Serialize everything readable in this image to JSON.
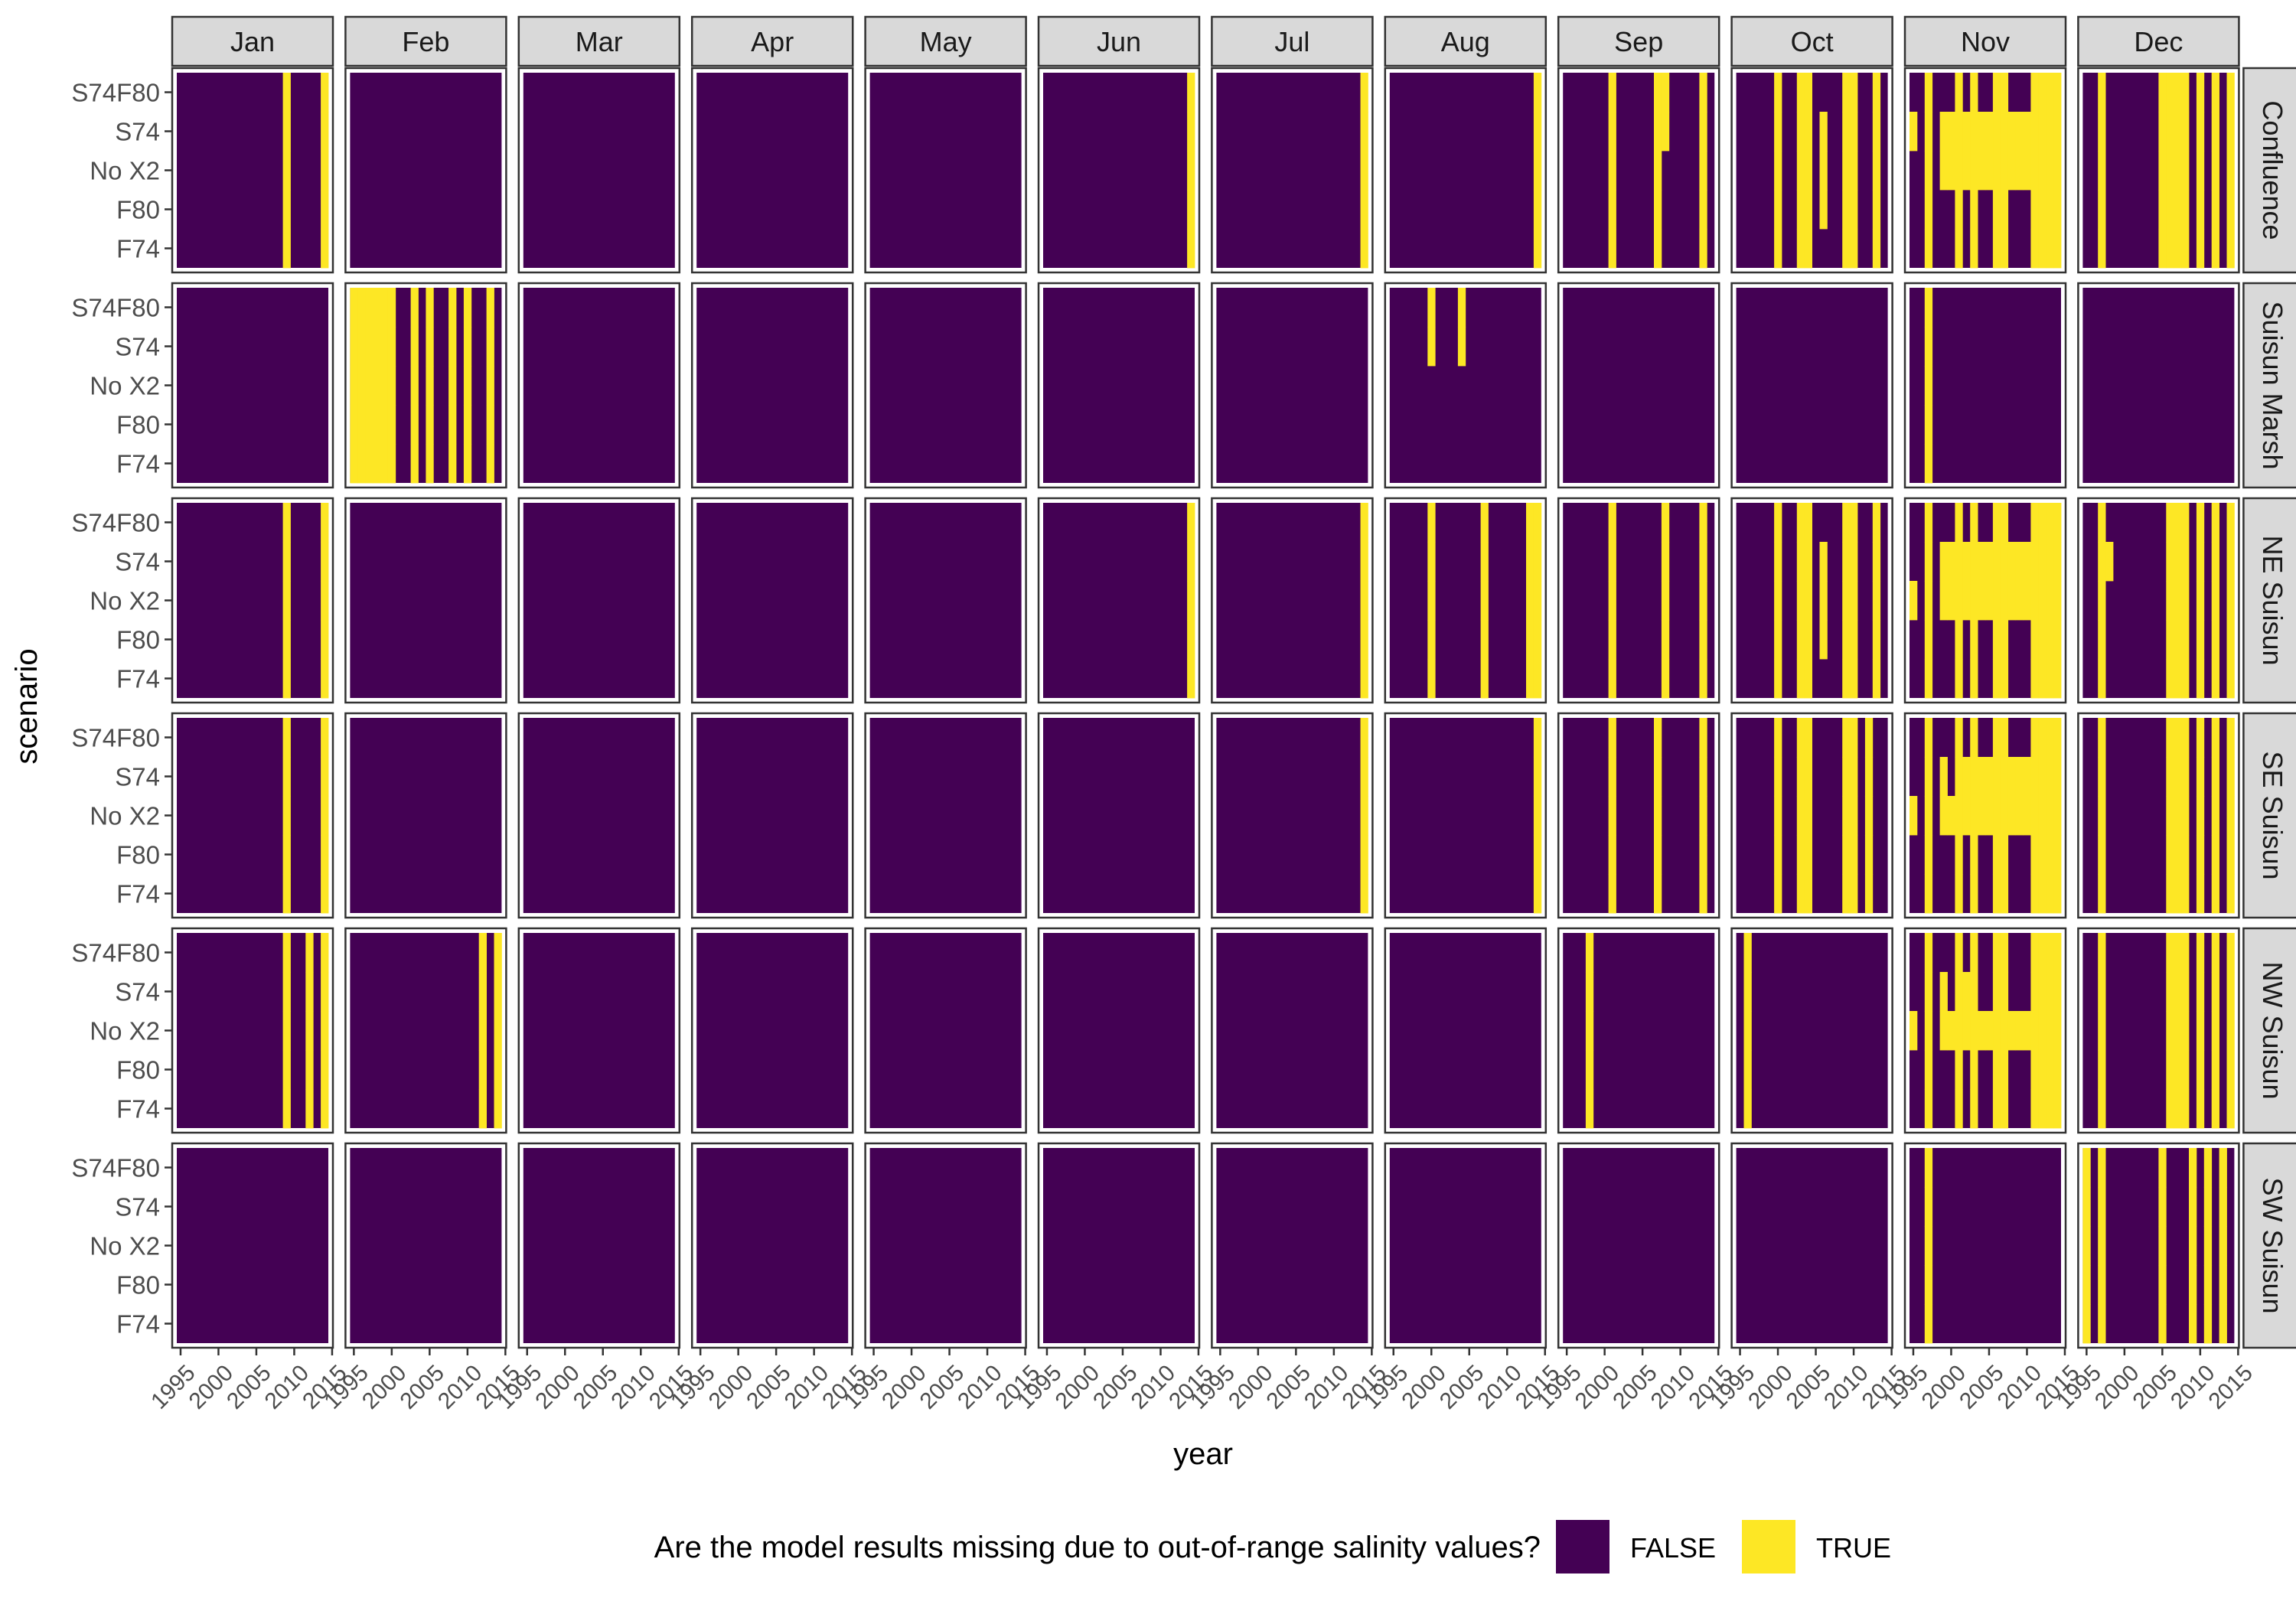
{
  "chart_data": {
    "type": "heatmap",
    "xlabel": "year",
    "ylabel": "scenario",
    "x_ticks": [
      1995,
      2000,
      2005,
      2010,
      2015
    ],
    "x_range": [
      1994.5,
      2014.5
    ],
    "years": [
      1995,
      1996,
      1997,
      1998,
      1999,
      2000,
      2001,
      2002,
      2003,
      2004,
      2005,
      2006,
      2007,
      2008,
      2009,
      2010,
      2011,
      2012,
      2013,
      2014
    ],
    "scenarios": [
      "S74F80",
      "S74",
      "No X2",
      "F80",
      "F74"
    ],
    "months": [
      "Jan",
      "Feb",
      "Mar",
      "Apr",
      "May",
      "Jun",
      "Jul",
      "Aug",
      "Sep",
      "Oct",
      "Nov",
      "Dec"
    ],
    "regions": [
      "Confluence",
      "Suisun Marsh",
      "NE Suisun",
      "SE Suisun",
      "NW Suisun",
      "SW Suisun"
    ],
    "legend": {
      "title": "Are the model results missing due to out-of-range salinity values?",
      "position": "bottom",
      "entries": [
        {
          "label": "FALSE",
          "color": "#440154"
        },
        {
          "label": "TRUE",
          "color": "#FDE725"
        }
      ]
    },
    "panel_border_color": "#333333",
    "strip_fill": "#D9D9D9",
    "true_cells_description": "Each entry: [region, month, scenario-or-all, list of years where missing = TRUE]",
    "true_cells": [
      [
        "Confluence",
        "Jan",
        "all",
        [
          2009,
          2014
        ]
      ],
      [
        "Confluence",
        "Jun",
        "all",
        [
          2014
        ]
      ],
      [
        "Confluence",
        "Jul",
        "all",
        [
          2014
        ]
      ],
      [
        "Confluence",
        "Aug",
        "all",
        [
          2014
        ]
      ],
      [
        "Confluence",
        "Sep",
        "all",
        [
          2001,
          2007,
          2013
        ]
      ],
      [
        "Confluence",
        "Sep",
        "S74F80",
        [
          2008
        ]
      ],
      [
        "Confluence",
        "Sep",
        "S74",
        [
          2008
        ]
      ],
      [
        "Confluence",
        "Oct",
        "all",
        [
          2000,
          2003,
          2004,
          2009,
          2010,
          2013
        ]
      ],
      [
        "Confluence",
        "Oct",
        "S74",
        [
          2006
        ]
      ],
      [
        "Confluence",
        "Oct",
        "No X2",
        [
          2006
        ]
      ],
      [
        "Confluence",
        "Oct",
        "F80",
        [
          2006
        ]
      ],
      [
        "Confluence",
        "Nov",
        "all",
        [
          1997,
          2001,
          2003,
          2006,
          2007,
          2011,
          2012,
          2013,
          2014
        ]
      ],
      [
        "Confluence",
        "Nov",
        "S74",
        [
          1995,
          1999,
          2000,
          2002,
          2004,
          2005,
          2008,
          2009,
          2010
        ]
      ],
      [
        "Confluence",
        "Nov",
        "No X2",
        [
          1999,
          2000,
          2002,
          2004,
          2005,
          2008,
          2009,
          2010
        ]
      ],
      [
        "Confluence",
        "Dec",
        "all",
        [
          1997,
          2005,
          2006,
          2007,
          2008,
          2010,
          2012,
          2014
        ]
      ],
      [
        "Suisun Marsh",
        "Feb",
        "all",
        [
          1995,
          1996,
          1997,
          1998,
          1999,
          2000,
          2003,
          2005,
          2008,
          2010,
          2013
        ]
      ],
      [
        "Suisun Marsh",
        "Aug",
        "S74F80",
        [
          2000,
          2004
        ]
      ],
      [
        "Suisun Marsh",
        "Aug",
        "S74",
        [
          2000,
          2004
        ]
      ],
      [
        "Suisun Marsh",
        "Nov",
        "all",
        [
          1997
        ]
      ],
      [
        "NE Suisun",
        "Jan",
        "all",
        [
          2009,
          2014
        ]
      ],
      [
        "NE Suisun",
        "Jun",
        "all",
        [
          2014
        ]
      ],
      [
        "NE Suisun",
        "Jul",
        "all",
        [
          2014
        ]
      ],
      [
        "NE Suisun",
        "Aug",
        "all",
        [
          2000,
          2007,
          2013,
          2014
        ]
      ],
      [
        "NE Suisun",
        "Sep",
        "all",
        [
          2001,
          2008,
          2013
        ]
      ],
      [
        "NE Suisun",
        "Oct",
        "all",
        [
          2000,
          2003,
          2004,
          2009,
          2010,
          2013
        ]
      ],
      [
        "NE Suisun",
        "Oct",
        "S74",
        [
          2006
        ]
      ],
      [
        "NE Suisun",
        "Oct",
        "No X2",
        [
          2006
        ]
      ],
      [
        "NE Suisun",
        "Oct",
        "F80",
        [
          2006
        ]
      ],
      [
        "NE Suisun",
        "Nov",
        "all",
        [
          1997,
          2001,
          2003,
          2006,
          2007,
          2011,
          2012,
          2013,
          2014
        ]
      ],
      [
        "NE Suisun",
        "Nov",
        "S74",
        [
          1999,
          2000,
          2002,
          2004,
          2005,
          2008,
          2009,
          2010
        ]
      ],
      [
        "NE Suisun",
        "Nov",
        "No X2",
        [
          1995,
          1999,
          2000,
          2002,
          2004,
          2005,
          2008,
          2009,
          2010
        ]
      ],
      [
        "NE Suisun",
        "Dec",
        "all",
        [
          1997,
          2006,
          2007,
          2008,
          2010,
          2012,
          2014
        ]
      ],
      [
        "NE Suisun",
        "Dec",
        "S74",
        [
          1998
        ]
      ],
      [
        "SE Suisun",
        "Jan",
        "all",
        [
          2009,
          2014
        ]
      ],
      [
        "SE Suisun",
        "Jul",
        "all",
        [
          2014
        ]
      ],
      [
        "SE Suisun",
        "Aug",
        "all",
        [
          2014
        ]
      ],
      [
        "SE Suisun",
        "Sep",
        "all",
        [
          2001,
          2007,
          2013
        ]
      ],
      [
        "SE Suisun",
        "Oct",
        "all",
        [
          2000,
          2003,
          2004,
          2009,
          2010,
          2012
        ]
      ],
      [
        "SE Suisun",
        "Nov",
        "all",
        [
          1997,
          2001,
          2003,
          2006,
          2007,
          2011,
          2012,
          2013,
          2014
        ]
      ],
      [
        "SE Suisun",
        "Nov",
        "S74",
        [
          1999,
          2002,
          2004,
          2005,
          2008,
          2009,
          2010
        ]
      ],
      [
        "SE Suisun",
        "Nov",
        "No X2",
        [
          1995,
          1999,
          2000,
          2002,
          2004,
          2005,
          2008,
          2009,
          2010
        ]
      ],
      [
        "SE Suisun",
        "Dec",
        "all",
        [
          1997,
          2006,
          2007,
          2008,
          2010,
          2012,
          2014
        ]
      ],
      [
        "NW Suisun",
        "Jan",
        "all",
        [
          2009,
          2012,
          2014
        ]
      ],
      [
        "NW Suisun",
        "Feb",
        "all",
        [
          2012,
          2014
        ]
      ],
      [
        "NW Suisun",
        "Sep",
        "all",
        [
          1998
        ]
      ],
      [
        "NW Suisun",
        "Oct",
        "all",
        [
          1996
        ]
      ],
      [
        "NW Suisun",
        "Nov",
        "all",
        [
          1997,
          2001,
          2003,
          2006,
          2007,
          2011,
          2012,
          2013,
          2014
        ]
      ],
      [
        "NW Suisun",
        "Nov",
        "S74",
        [
          1999,
          2002
        ]
      ],
      [
        "NW Suisun",
        "Nov",
        "No X2",
        [
          1995,
          1999,
          2000,
          2002,
          2004,
          2005,
          2008,
          2009,
          2010
        ]
      ],
      [
        "NW Suisun",
        "Dec",
        "all",
        [
          1997,
          2006,
          2007,
          2008,
          2010,
          2012,
          2014
        ]
      ],
      [
        "SW Suisun",
        "Nov",
        "all",
        [
          1997
        ]
      ],
      [
        "SW Suisun",
        "Dec",
        "all",
        [
          1995,
          1997,
          2005,
          2009,
          2011,
          2013
        ]
      ]
    ]
  }
}
